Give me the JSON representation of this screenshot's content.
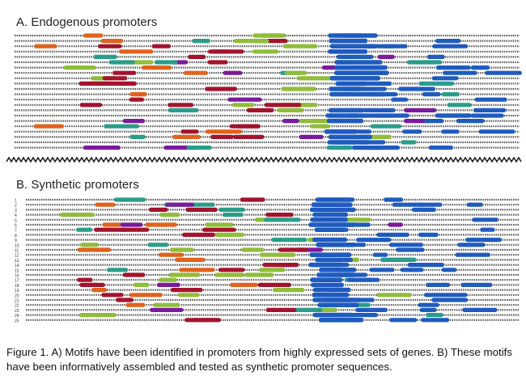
{
  "panel_a": {
    "title": "A. Endogenous promoters"
  },
  "panel_b": {
    "title": "B. Synthetic promoters",
    "row_labels": [
      "1",
      "2",
      "3",
      "4",
      "5",
      "6",
      "7",
      "8",
      "9",
      "10",
      "11",
      "12",
      "13",
      "14",
      "15",
      "16",
      "17",
      "18",
      "19",
      "20",
      "21",
      "22",
      "23",
      "24",
      "25"
    ]
  },
  "caption": "Figure 1. A) Motifs have been identified in promoters from highly expressed sets of genes. B) These motifs have been informatively assembled and tested as synthetic promoter sequences.",
  "colors": {
    "blue": "#1f5bbf",
    "green": "#8fbd3a",
    "red": "#a3132c",
    "purple": "#7a1a9c",
    "teal": "#2a9d8a",
    "orange": "#e0621c",
    "line": "#555555"
  }
}
